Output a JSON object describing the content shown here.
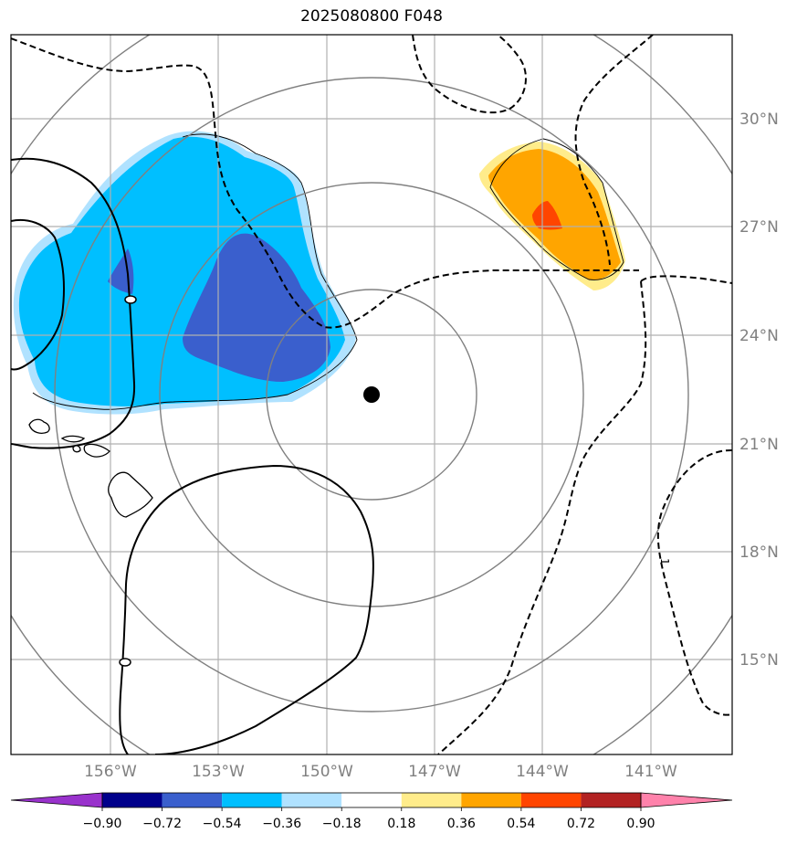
{
  "title": "2025080800 F048",
  "map": {
    "latitudes": [
      "30°N",
      "27°N",
      "24°N",
      "21°N",
      "18°N",
      "15°N"
    ],
    "longitudes": [
      "156°W",
      "153°W",
      "150°W",
      "147°W",
      "144°W",
      "141°W"
    ],
    "contour_label": "1",
    "center_marker": "storm-center"
  },
  "colorbar": {
    "labels": [
      "−0.90",
      "−0.72",
      "−0.54",
      "−0.36",
      "−0.18",
      "0.18",
      "0.36",
      "0.54",
      "0.72",
      "0.90"
    ],
    "colors": [
      "#9932cc",
      "#00008b",
      "#3a5fcd",
      "#00bfff",
      "#b0e2ff",
      "#ffffff",
      "#ffec8b",
      "#ffa500",
      "#ff4500",
      "#b22222",
      "#ff82ab"
    ]
  },
  "colors": {
    "neg_strong": "#3a5fcd",
    "neg_mid": "#00bfff",
    "neg_light": "#b0e2ff",
    "pos_light": "#ffec8b",
    "pos_mid": "#ffa500",
    "pos_strong": "#ff4500",
    "grid": "#b0b0b0",
    "rings": "#808080"
  }
}
